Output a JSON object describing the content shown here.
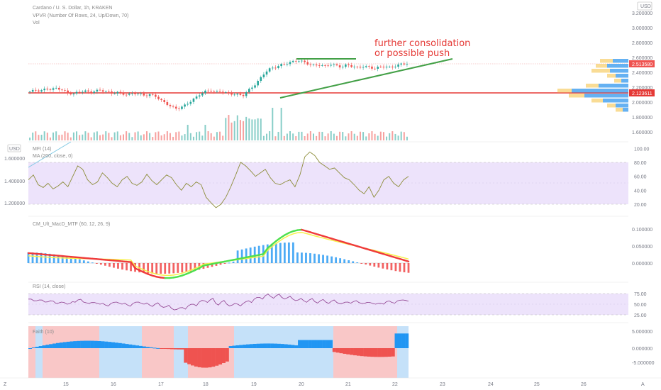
{
  "header": {
    "title": "Cardano / U. S. Dollar, 1h, KRAKEN",
    "vpvr": "VPVR (Number Of Rows, 24, Up/Down, 70)",
    "vol": "Vol",
    "currency": "USD"
  },
  "annotation": {
    "line1": "further consolidation",
    "line2": "or possible push"
  },
  "colors": {
    "up": "#26a69a",
    "down": "#ef5350",
    "support": "#e53935",
    "trend": "#43a047",
    "mfi_line": "#8d8d3a",
    "band": "#ede3fb",
    "rsi_line": "#8e3e8e",
    "macd_green": "#4ee04e",
    "macd_red": "#ef3b3b",
    "macd_signal": "#f7f04a",
    "hist_blue": "#2196f3",
    "bg_red": "#f7b9b9",
    "bg_blue": "#b7d9f7",
    "bg_green": "#cdeccd"
  },
  "chart_data": [
    {
      "type": "candlestick",
      "name": "price",
      "x_ticks": [
        "15",
        "16",
        "17",
        "18",
        "19",
        "20",
        "21",
        "22",
        "23",
        "24",
        "25",
        "26"
      ],
      "y_ticks": [
        "3.200000",
        "3.000000",
        "2.800000",
        "2.600000",
        "2.400000",
        "2.200000",
        "2.000000",
        "1.800000",
        "1.600000"
      ],
      "last_price": "2.513580",
      "support_level": "2.123611",
      "close_series": [
        2.14,
        2.16,
        2.15,
        2.18,
        2.17,
        2.19,
        2.16,
        2.12,
        2.11,
        2.14,
        2.15,
        2.13,
        2.15,
        2.16,
        2.14,
        2.12,
        2.13,
        2.11,
        2.1,
        2.12,
        2.11,
        2.09,
        2.1,
        2.08,
        2.02,
        1.98,
        1.93,
        1.91,
        1.94,
        1.99,
        2.04,
        2.1,
        2.14,
        2.16,
        2.13,
        2.15,
        2.12,
        2.11,
        2.1,
        2.09,
        2.16,
        2.22,
        2.3,
        2.4,
        2.45,
        2.47,
        2.5,
        2.52,
        2.54,
        2.56,
        2.54,
        2.51,
        2.49,
        2.5,
        2.48,
        2.51,
        2.49,
        2.47,
        2.5,
        2.48,
        2.46,
        2.48,
        2.47,
        2.45,
        2.47,
        2.48,
        2.46,
        2.49,
        2.51,
        2.52
      ]
    },
    {
      "type": "line",
      "name": "MFI (14)",
      "legend": "MFI (14)",
      "legend2": "MA (200, close, 0)",
      "y_ticks": [
        "100.00",
        "80.00",
        "60.00",
        "40.00",
        "20.00"
      ],
      "left_ticks": [
        "1.600000",
        "1.400000",
        "1.200000"
      ],
      "values": [
        55,
        62,
        48,
        44,
        50,
        42,
        46,
        52,
        45,
        60,
        75,
        70,
        55,
        48,
        52,
        65,
        58,
        50,
        45,
        55,
        60,
        50,
        47,
        52,
        63,
        54,
        48,
        55,
        62,
        58,
        48,
        40,
        50,
        45,
        52,
        48,
        30,
        22,
        15,
        20,
        30,
        45,
        62,
        80,
        75,
        68,
        60,
        65,
        70,
        58,
        50,
        48,
        52,
        55,
        45,
        62,
        88,
        95,
        90,
        80,
        75,
        70,
        72,
        65,
        58,
        55,
        48,
        40,
        35,
        45,
        30,
        40,
        55,
        60,
        50,
        45,
        55,
        60
      ]
    },
    {
      "type": "line",
      "name": "CM_Ult_MacD_MTF (60, 12, 26, 9)",
      "legend": "CM_Ult_MacD_MTF (60, 12, 26, 9)",
      "y_ticks": [
        "0.100000",
        "0.050000",
        "0.000000"
      ]
    },
    {
      "type": "line",
      "name": "RSI (14, close)",
      "legend": "RSI (14, close)",
      "y_ticks": [
        "75.00",
        "50.00",
        "25.00"
      ],
      "values": [
        62,
        58,
        60,
        55,
        58,
        52,
        55,
        50,
        56,
        60,
        55,
        52,
        54,
        50,
        48,
        52,
        55,
        50,
        48,
        52,
        55,
        50,
        48,
        50,
        46,
        44,
        40,
        38,
        42,
        46,
        50,
        55,
        58,
        60,
        52,
        55,
        50,
        48,
        50,
        52,
        58,
        62,
        66,
        70,
        68,
        70,
        66,
        65,
        62,
        60,
        58,
        60,
        56,
        58,
        55,
        57,
        54,
        52,
        55,
        56,
        54,
        52,
        54,
        50,
        52,
        56,
        54,
        58,
        60,
        57
      ]
    },
    {
      "type": "bar",
      "name": "Faith (10)",
      "legend": "Faith (10)",
      "y_ticks": [
        "5.000000",
        "0.000000",
        "-5.000000"
      ]
    }
  ],
  "x_axis": {
    "left_icon": "Z",
    "right_icon": "A"
  }
}
